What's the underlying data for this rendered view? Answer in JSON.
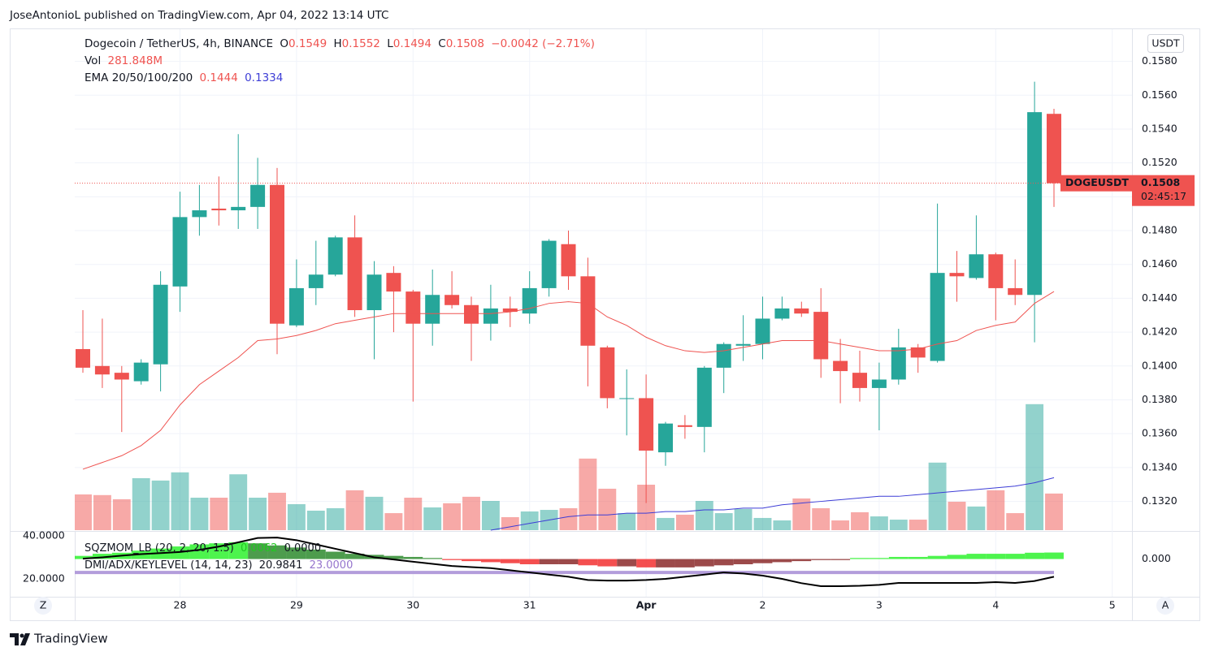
{
  "publisher": "JoseAntonioL published on TradingView.com, Apr 04, 2022 13:14 UTC",
  "footer": "TradingView",
  "chart_data": [
    {
      "type": "candlestick",
      "title": "Dogecoin / TetherUS, 4h, BINANCE",
      "ohlc_legend": [
        {
          "label": "O",
          "value": "0.1549"
        },
        {
          "label": "H",
          "value": "0.1552"
        },
        {
          "label": "L",
          "value": "0.1494"
        },
        {
          "label": "C",
          "value": "0.1508"
        }
      ],
      "change": "−0.0042 (−2.71%)",
      "currency": "USDT",
      "scale_buttons": [
        "Z",
        "A"
      ],
      "categories": [
        null,
        null,
        null,
        null,
        null,
        "28",
        null,
        null,
        null,
        null,
        null,
        "29",
        null,
        null,
        null,
        null,
        null,
        "30",
        null,
        null,
        null,
        null,
        null,
        "31",
        null,
        null,
        null,
        null,
        null,
        "Apr",
        null,
        null,
        null,
        null,
        null,
        "2",
        null,
        null,
        null,
        null,
        null,
        "3",
        null,
        null,
        null,
        null,
        null,
        "4",
        null,
        null,
        null,
        null,
        null,
        "5"
      ],
      "series": [
        {
          "name": "DOGEUSDT",
          "up_color": "#26a69a",
          "down_color": "#ef5350",
          "open": [
            0.141,
            0.14,
            0.1396,
            0.1391,
            0.1401,
            0.1447,
            0.1488,
            0.1493,
            0.1492,
            0.1494,
            0.1507,
            0.1424,
            0.1446,
            0.1454,
            0.1476,
            0.1433,
            0.1455,
            0.1444,
            0.1425,
            0.1442,
            0.1436,
            0.1425,
            0.1434,
            0.1431,
            0.1446,
            0.1472,
            0.1453,
            0.1411,
            0.1381,
            0.1381,
            0.1349,
            0.1365,
            0.1364,
            0.1399,
            0.1412,
            0.1413,
            0.1428,
            0.1434,
            0.1432,
            0.1403,
            0.1396,
            0.1387,
            0.1392,
            0.1411,
            0.1403,
            0.1455,
            0.1452,
            0.1466,
            0.1446,
            0.1442,
            0.1549,
            null,
            null,
            null
          ],
          "high": [
            0.1433,
            0.1428,
            0.14,
            0.1404,
            0.1456,
            0.1503,
            0.1507,
            0.1512,
            0.1537,
            0.1523,
            0.1517,
            0.1463,
            0.1474,
            0.1477,
            0.1489,
            0.1462,
            0.1459,
            0.1445,
            0.1457,
            0.1456,
            0.1441,
            0.1448,
            0.1441,
            0.1456,
            0.1475,
            0.148,
            0.1464,
            0.1412,
            0.1398,
            0.1395,
            0.1367,
            0.1371,
            0.14,
            0.1414,
            0.143,
            0.1441,
            0.1441,
            0.1438,
            0.1446,
            0.1416,
            0.1409,
            0.1402,
            0.1422,
            0.1413,
            0.1496,
            0.1468,
            0.1489,
            0.1467,
            0.1463,
            0.1568,
            0.1552,
            null,
            null,
            null
          ],
          "low": [
            0.1396,
            0.1387,
            0.1361,
            0.1389,
            0.1385,
            0.1432,
            0.1477,
            0.1483,
            0.1481,
            0.1481,
            0.1407,
            0.1423,
            0.1436,
            0.1453,
            0.1429,
            0.1404,
            0.142,
            0.1379,
            0.1412,
            0.1434,
            0.1403,
            0.1415,
            0.1423,
            0.1425,
            0.1441,
            0.1445,
            0.1388,
            0.1375,
            0.1359,
            0.1319,
            0.1341,
            0.1357,
            0.1349,
            0.1384,
            0.1403,
            0.1404,
            0.1427,
            0.1429,
            0.1393,
            0.1378,
            0.1379,
            0.1362,
            0.1389,
            0.1396,
            0.1402,
            0.1438,
            0.1451,
            0.1427,
            0.1436,
            0.1414,
            0.1494,
            null,
            null,
            null
          ],
          "close": [
            0.1399,
            0.1395,
            0.1392,
            0.1402,
            0.1448,
            0.1488,
            0.1492,
            0.1492,
            0.1494,
            0.1507,
            0.1425,
            0.1446,
            0.1454,
            0.1476,
            0.1433,
            0.1454,
            0.1444,
            0.1425,
            0.1442,
            0.1436,
            0.1425,
            0.1434,
            0.1432,
            0.1446,
            0.1474,
            0.1453,
            0.1412,
            0.1381,
            0.1381,
            0.135,
            0.1366,
            0.1364,
            0.1399,
            0.1413,
            0.1413,
            0.1428,
            0.1434,
            0.1431,
            0.1404,
            0.1397,
            0.1387,
            0.1392,
            0.1411,
            0.1405,
            0.1455,
            0.1453,
            0.1466,
            0.1446,
            0.1442,
            0.155,
            0.1508,
            null,
            null,
            null
          ]
        }
      ],
      "volume": {
        "name": "Vol",
        "value_label": "281.848M",
        "up_color": "rgba(38,166,154,0.5)",
        "down_color": "rgba(239,83,80,0.5)",
        "values": [
          275,
          270,
          238,
          400,
          382,
          445,
          250,
          250,
          430,
          250,
          288,
          200,
          150,
          169,
          307,
          257,
          131,
          250,
          175,
          207,
          257,
          225,
          100,
          144,
          156,
          169,
          551,
          319,
          131,
          350,
          94,
          119,
          225,
          131,
          163,
          94,
          75,
          244,
          169,
          75,
          138,
          106,
          81,
          81,
          520,
          219,
          182,
          307,
          131,
          970,
          281.848,
          null,
          null,
          null
        ]
      },
      "lines": {
        "name": "EMA 20/50/100/200",
        "series": [
          {
            "color": "#ef5350",
            "value_label": "0.1444",
            "values": [
              0.1339,
              0.1343,
              0.1347,
              0.1353,
              0.1362,
              0.1377,
              0.1389,
              0.1397,
              0.1405,
              0.1415,
              0.1416,
              0.1418,
              0.1421,
              0.1425,
              0.1427,
              0.1429,
              0.1431,
              0.1431,
              0.1431,
              0.1431,
              0.1431,
              0.1431,
              0.1432,
              0.1434,
              0.1437,
              0.1438,
              0.1437,
              0.1429,
              0.1424,
              0.1417,
              0.1412,
              0.1409,
              0.1408,
              0.1409,
              0.1411,
              0.1413,
              0.1415,
              0.1415,
              0.1415,
              0.1413,
              0.1411,
              0.1409,
              0.1409,
              0.141,
              0.1413,
              0.1415,
              0.1421,
              0.1424,
              0.1426,
              0.1437,
              0.1444,
              null,
              null,
              null
            ]
          },
          {
            "color": "#3d3dd6",
            "value_label": "0.1334",
            "values": [
              null,
              null,
              null,
              null,
              null,
              null,
              null,
              null,
              null,
              null,
              null,
              null,
              null,
              null,
              null,
              null,
              null,
              null,
              null,
              null,
              null,
              0.1303,
              0.1305,
              0.1307,
              0.1309,
              0.1311,
              0.1312,
              0.1312,
              0.1313,
              0.1313,
              0.1314,
              0.1314,
              0.1315,
              0.1315,
              0.1316,
              0.1316,
              0.1318,
              0.1319,
              0.132,
              0.1321,
              0.1322,
              0.1323,
              0.1323,
              0.1324,
              0.1325,
              0.1326,
              0.1327,
              0.1328,
              0.1329,
              0.1331,
              0.1334,
              null,
              null,
              null
            ]
          }
        ]
      },
      "last_price": {
        "label": "DOGEUSDT",
        "value": 0.1508,
        "value_label": "0.1508",
        "countdown": "02:45:17",
        "color": "#ef5350"
      },
      "ylim": [
        0.1303,
        0.1599
      ],
      "yticks": [
        {
          "value": 0.132,
          "label": "0.1320"
        },
        {
          "value": 0.134,
          "label": "0.1340"
        },
        {
          "value": 0.136,
          "label": "0.1360"
        },
        {
          "value": 0.138,
          "label": "0.1380"
        },
        {
          "value": 0.14,
          "label": "0.1400"
        },
        {
          "value": 0.142,
          "label": "0.1420"
        },
        {
          "value": 0.144,
          "label": "0.1440"
        },
        {
          "value": 0.146,
          "label": "0.1460"
        },
        {
          "value": 0.148,
          "label": "0.1480"
        },
        {
          "value": 0.15,
          "label": "0.1500"
        },
        {
          "value": 0.152,
          "label": "0.1520"
        },
        {
          "value": 0.154,
          "label": "0.1540"
        },
        {
          "value": 0.156,
          "label": "0.1560"
        },
        {
          "value": 0.158,
          "label": "0.1580"
        }
      ],
      "grid": true
    },
    {
      "type": "indicator",
      "ylim": [
        11.7,
        41.9
      ],
      "yticks": [
        {
          "value": 20,
          "label": "20.0000"
        },
        {
          "value": 40,
          "label": "40.0000"
        }
      ],
      "y2lim": [
        -0.036,
        0.026
      ],
      "y2ticks": [
        {
          "value": 0,
          "label": "0.000"
        }
      ],
      "series": [
        {
          "name": "SQZMOM_LB (20, 2, 20, 1.5)",
          "axis": "y2",
          "legend_values": [
            "0.0062",
            "0.0000"
          ],
          "legend_colors": [
            "#22c722",
            "#131722"
          ],
          "colors": {
            "up_rising": "#2ef22e",
            "up_falling": "#2e8b2e",
            "down_falling": "#f23030",
            "down_rising": "#8b2a2a"
          },
          "values": [
            0.003,
            0.005,
            0.006,
            0.008,
            0.01,
            0.012,
            0.014,
            0.015,
            0.016,
            0.015,
            0.013,
            0.011,
            0.009,
            0.007,
            0.005,
            0.004,
            0.003,
            0.002,
            0.001,
            -0.001,
            -0.002,
            -0.003,
            -0.004,
            -0.005,
            -0.005,
            -0.005,
            -0.006,
            -0.007,
            -0.007,
            -0.008,
            -0.008,
            -0.008,
            -0.007,
            -0.006,
            -0.005,
            -0.004,
            -0.003,
            -0.002,
            -0.001,
            -0.001,
            0.001,
            0.001,
            0.002,
            0.002,
            0.003,
            0.004,
            0.005,
            0.005,
            0.005,
            0.006,
            0.0062,
            null,
            null,
            null
          ]
        },
        {
          "name": "DMI/ADX/KEYLEVEL (14, 14, 23)",
          "color": "#000000",
          "legend_values": [
            "20.9841",
            "23.0000"
          ],
          "legend_colors": [
            "#131722",
            "#9575cd"
          ],
          "keylevel": 23,
          "keylevel_color": "#b39ddb",
          "values": [
            29.4,
            30,
            30.8,
            31.5,
            32,
            32.5,
            33.5,
            35,
            37,
            39,
            39.2,
            38,
            36,
            34,
            32,
            30,
            29,
            28,
            27,
            26,
            25.5,
            25,
            24,
            23,
            22,
            21,
            19.5,
            19.2,
            19.2,
            19.5,
            20,
            21,
            22,
            23,
            22.5,
            21.5,
            20,
            18,
            16.6,
            16.6,
            16.8,
            17.2,
            18.1,
            18.1,
            18.1,
            18.1,
            18.1,
            18.5,
            18.1,
            19,
            20.9841,
            null,
            null,
            null
          ]
        }
      ]
    }
  ]
}
